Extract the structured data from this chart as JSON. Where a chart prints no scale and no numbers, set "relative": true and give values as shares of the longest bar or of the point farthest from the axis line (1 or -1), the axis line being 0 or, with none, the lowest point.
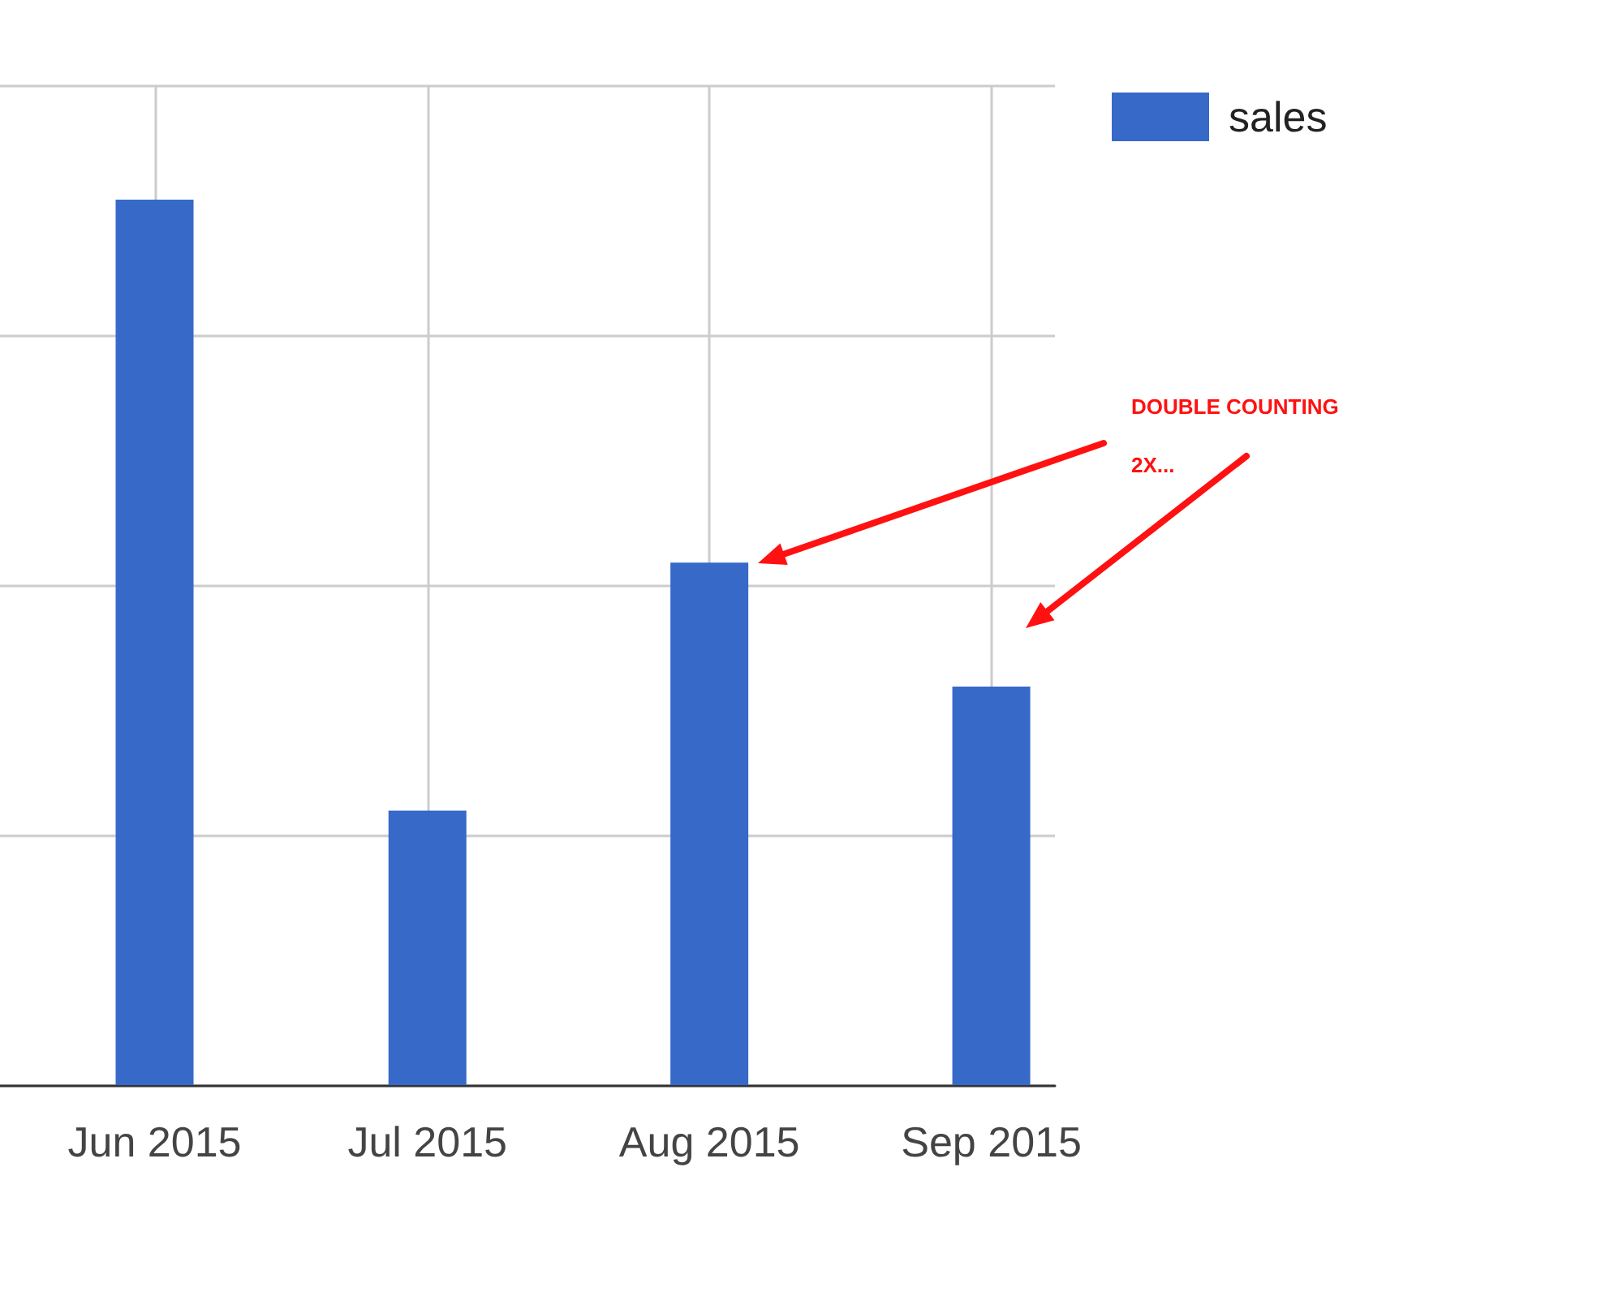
{
  "chart_data": {
    "type": "bar",
    "relative": true,
    "x": [
      "2015-06",
      "2015-07",
      "2015-08",
      "2015-09"
    ],
    "xlim": [
      "2015-05-15",
      "2015-09-08"
    ],
    "xticks": [
      {
        "value": "2015-06",
        "label": "Jun 2015"
      },
      {
        "value": "2015-07",
        "label": "Jul 2015"
      },
      {
        "value": "2015-08",
        "label": "Aug 2015"
      },
      {
        "value": "2015-09",
        "label": "Sep 2015"
      }
    ],
    "series": [
      {
        "name": "sales",
        "color": "#3769c9",
        "values": [
          1,
          0.31,
          0.59,
          0.45
        ]
      }
    ],
    "annotations": [
      "DOUBLE COUNTING",
      "2X..."
    ],
    "grid": true,
    "legend": "top right"
  }
}
